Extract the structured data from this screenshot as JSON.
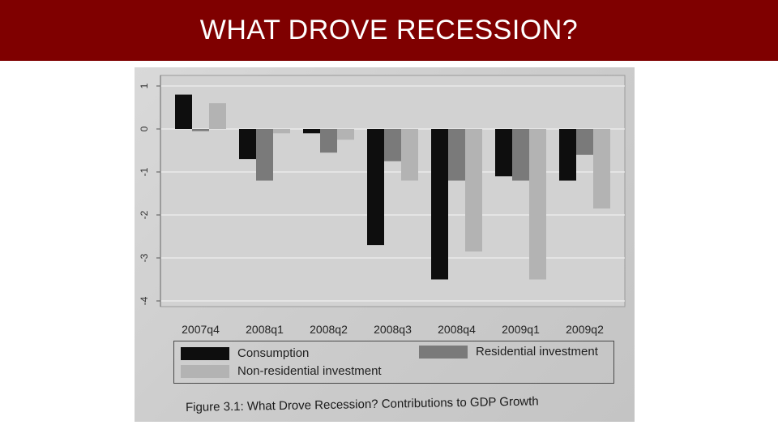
{
  "slide": {
    "title": "WHAT DROVE RECESSION?"
  },
  "caption": "Figure 3.1: What Drove Recession? Contributions to GDP Growth",
  "colors": {
    "title_bar": "#7f0000",
    "consumption": "#0e0e0e",
    "residential": "#7a7a7a",
    "nonresidential": "#b3b3b3"
  },
  "chart_data": {
    "type": "bar",
    "title": "",
    "xlabel": "",
    "ylabel": "",
    "ylim": [
      -4,
      1
    ],
    "yticks": [
      "1",
      "0",
      "-1",
      "-2",
      "-3",
      "-4"
    ],
    "grid": true,
    "legend_position": "bottom",
    "categories": [
      "2007q4",
      "2008q1",
      "2008q2",
      "2008q3",
      "2008q4",
      "2009q1",
      "2009q2"
    ],
    "series": [
      {
        "name": "Consumption",
        "values": [
          0.8,
          -0.7,
          -0.1,
          -2.7,
          -3.5,
          -1.1,
          -1.2
        ]
      },
      {
        "name": "Residential investment",
        "values": [
          -0.05,
          -1.2,
          -0.55,
          -0.75,
          -1.2,
          -1.2,
          -0.6
        ]
      },
      {
        "name": "Non-residential investment",
        "values": [
          0.6,
          -0.1,
          -0.25,
          -1.2,
          -2.85,
          -3.5,
          -1.85
        ]
      }
    ]
  }
}
